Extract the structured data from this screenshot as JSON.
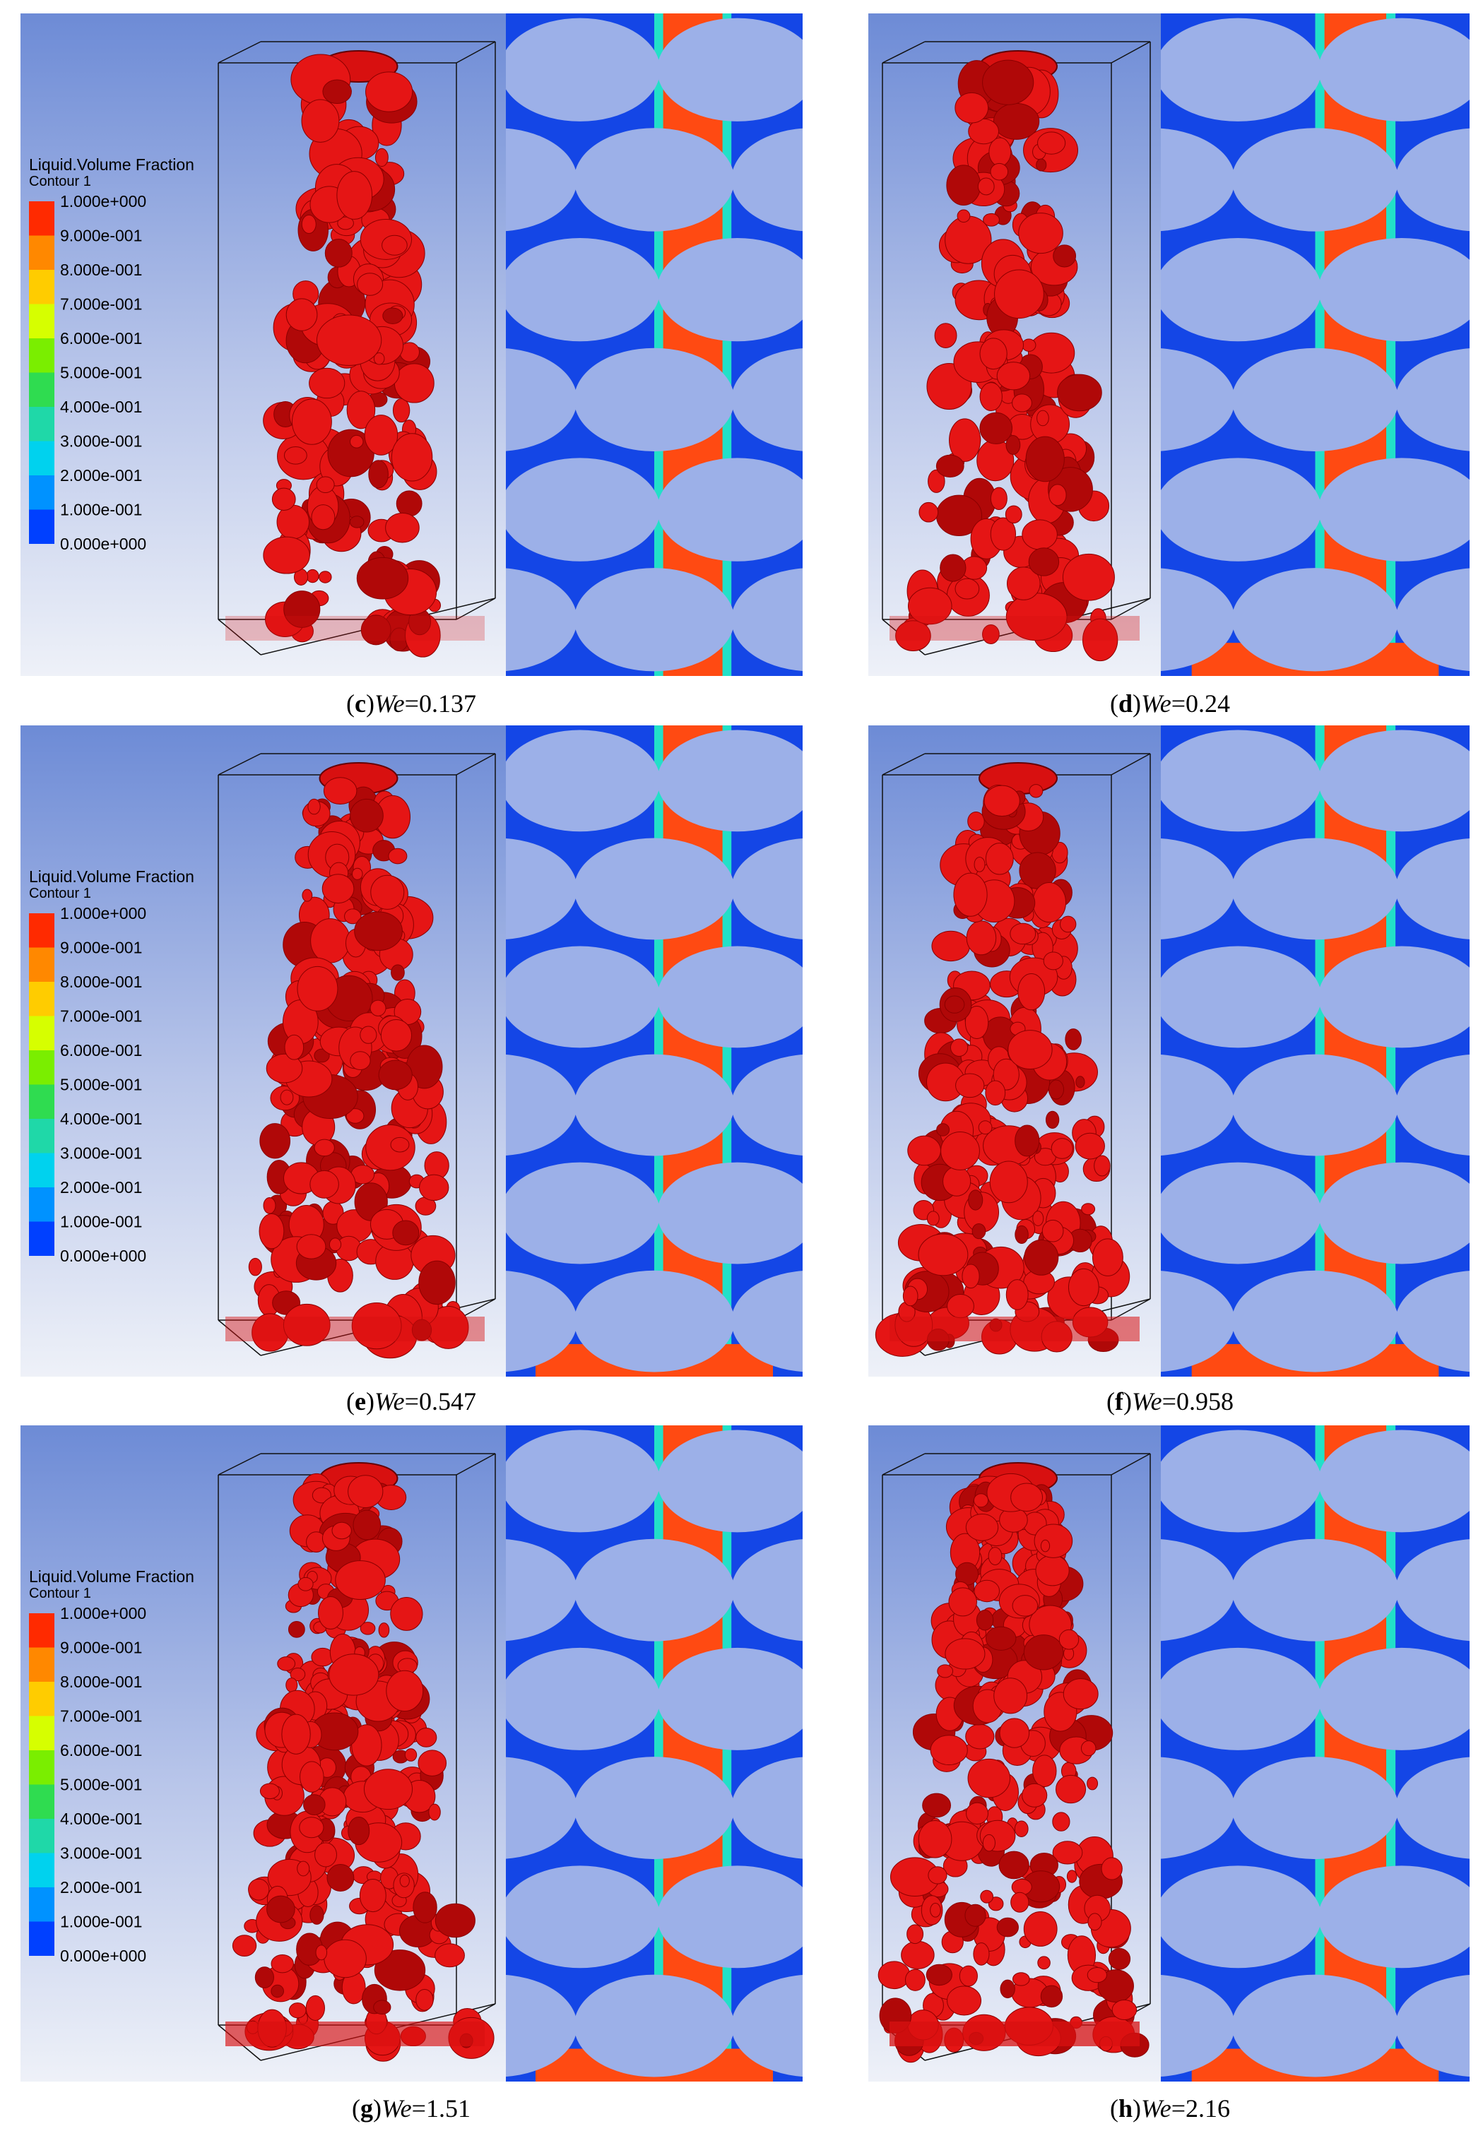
{
  "figure": {
    "legend": {
      "title": "Liquid.Volume Fraction",
      "subtitle": "Contour 1",
      "labels": [
        "1.000e+000",
        "9.000e-001",
        "8.000e-001",
        "7.000e-001",
        "6.000e-001",
        "5.000e-001",
        "4.000e-001",
        "3.000e-001",
        "2.000e-001",
        "1.000e-001",
        "0.000e+000"
      ]
    },
    "panels": [
      {
        "open": "(",
        "letter": "c",
        "close": ")",
        "variable": "We",
        "equals": "=",
        "value": 0.137
      },
      {
        "open": "(",
        "letter": "d",
        "close": ")",
        "variable": "We",
        "equals": "=",
        "value": 0.24
      },
      {
        "open": "(",
        "letter": "e",
        "close": ")",
        "variable": "We",
        "equals": "=",
        "value": 0.547
      },
      {
        "open": "(",
        "letter": "f",
        "close": ")",
        "variable": "We",
        "equals": "=",
        "value": 0.958
      },
      {
        "open": "(",
        "letter": "g",
        "close": ")",
        "variable": "We",
        "equals": "=",
        "value": 1.51
      },
      {
        "open": "(",
        "letter": "h",
        "close": ")",
        "variable": "We",
        "equals": "=",
        "value": 2.16
      }
    ]
  }
}
